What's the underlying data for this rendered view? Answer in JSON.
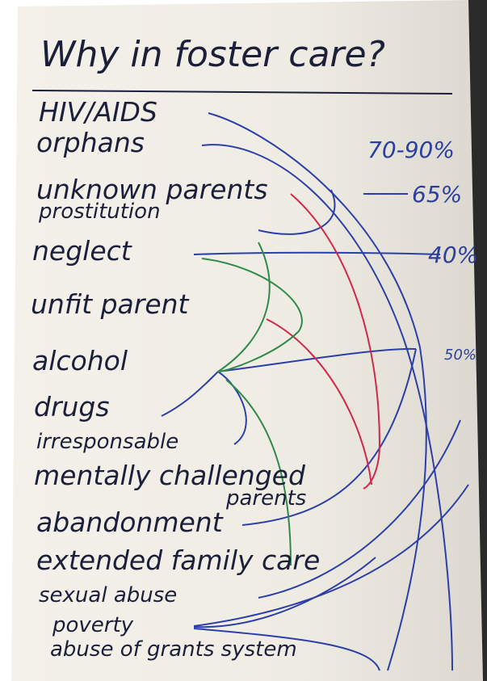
{
  "title": "Why in foster care?",
  "items": [
    "HIV/AIDS",
    "orphans",
    "unknown parents",
    "prostitution",
    "neglect",
    "unfit parent",
    "alcohol",
    "drugs",
    "irresponsable",
    "mentally challenged",
    "parents",
    "abandonment",
    "extended family care",
    "sexual abuse",
    "poverty",
    "abuse of grants system"
  ],
  "annotations": [
    "70-90%",
    "65%",
    "40%",
    "50%"
  ]
}
